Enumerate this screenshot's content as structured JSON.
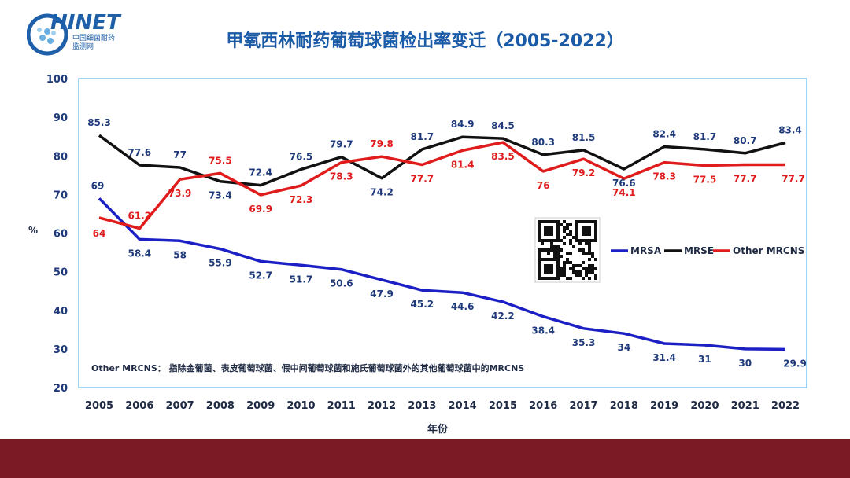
{
  "header": {
    "logo_text": "HINET",
    "logo_sub_line1": "中国细菌耐药",
    "logo_sub_line2": "监测网",
    "title": "甲氧西林耐药葡萄球菌检出率变迁（2005-2022）"
  },
  "colors": {
    "mrsa": "#1b1fc4",
    "mrse": "#111111",
    "mrcns": "#e01b1b",
    "axis_text": "#1f3a7a",
    "plot_border": "#9fd3f0",
    "brand": "#1d5fa8",
    "footer": "#7b1a24"
  },
  "chart_data": {
    "type": "line",
    "x": [
      2005,
      2006,
      2007,
      2008,
      2009,
      2010,
      2011,
      2012,
      2013,
      2014,
      2015,
      2016,
      2017,
      2018,
      2019,
      2020,
      2021,
      2022
    ],
    "series": [
      {
        "name": "MRSA",
        "values": [
          69,
          58.4,
          58,
          55.9,
          52.7,
          51.7,
          50.6,
          47.9,
          45.2,
          44.6,
          42.2,
          38.4,
          35.3,
          34,
          31.4,
          31,
          30,
          29.9
        ]
      },
      {
        "name": "MRSE",
        "values": [
          85.3,
          77.6,
          77,
          73.4,
          72.4,
          76.5,
          79.7,
          74.2,
          81.7,
          84.9,
          84.5,
          80.3,
          81.5,
          76.6,
          82.4,
          81.7,
          80.7,
          83.4
        ]
      },
      {
        "name": "Other MRCNS",
        "values": [
          64,
          61.2,
          73.9,
          75.5,
          69.9,
          72.3,
          78.3,
          79.8,
          77.7,
          81.4,
          83.5,
          76,
          79.2,
          74.1,
          78.3,
          77.5,
          77.7,
          77.7
        ]
      }
    ],
    "xlabel": "年份",
    "ylabel": "%",
    "ylim": [
      20,
      100
    ],
    "yticks": [
      20,
      30,
      40,
      50,
      60,
      70,
      80,
      90,
      100
    ],
    "grid": false,
    "legend": "right-middle",
    "annotation": "Other MRCNS： 指除金葡菌、表皮葡萄球菌、假中间葡萄球菌和施氏葡萄球菌外的其他葡萄球菌中的MRCNS"
  }
}
